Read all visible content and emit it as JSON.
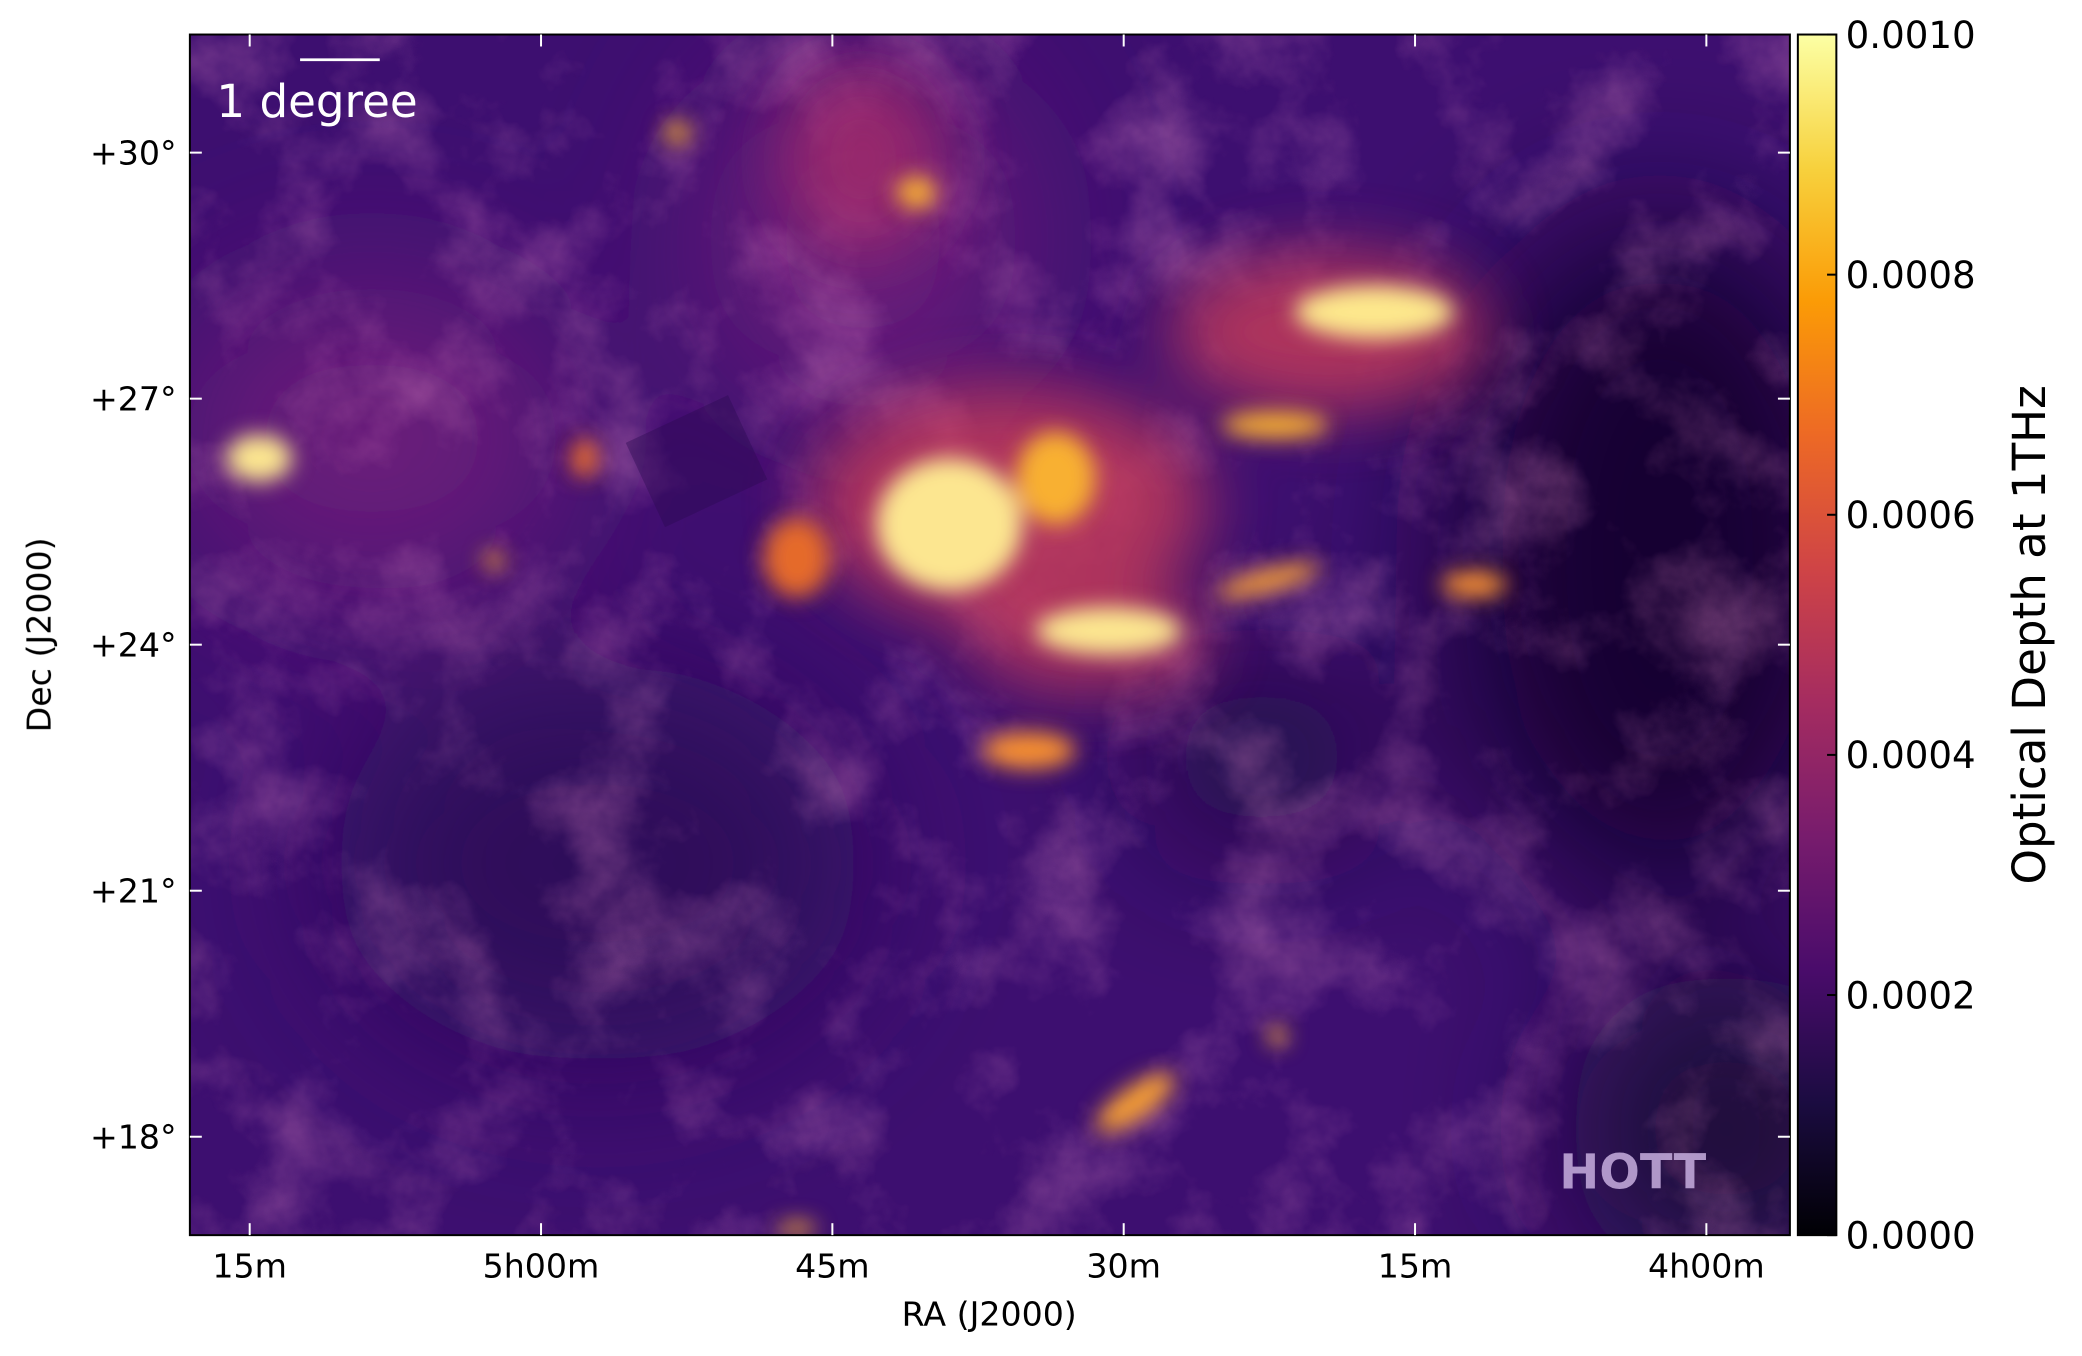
{
  "chart_data": {
    "type": "image-map",
    "xlabel": "RA (J2000)",
    "ylabel": "Dec (J2000)",
    "xlim": [
      318.08,
      235.7
    ],
    "xticks": [
      {
        "value": 315,
        "label": "15m"
      },
      {
        "value": 300,
        "label": "5h00m"
      },
      {
        "value": 285,
        "label": "45m"
      },
      {
        "value": 270,
        "label": "30m"
      },
      {
        "value": 255,
        "label": "15m"
      },
      {
        "value": 240,
        "label": "4h00m"
      }
    ],
    "ylim": [
      16.8,
      31.44
    ],
    "yticks": [
      {
        "value": 30,
        "label": "+30°"
      },
      {
        "value": 27,
        "label": "+27°"
      },
      {
        "value": 24,
        "label": "+24°"
      },
      {
        "value": 21,
        "label": "+21°"
      },
      {
        "value": 18,
        "label": "+18°"
      }
    ],
    "colorbar": {
      "label": "Optical Depth at 1THz",
      "colormap": "inferno",
      "clim": [
        0,
        0.001
      ],
      "ticks": [
        {
          "value": 0,
          "label": "0.0000"
        },
        {
          "value": 0.0002,
          "label": "0.0002"
        },
        {
          "value": 0.0004,
          "label": "0.0004"
        },
        {
          "value": 0.0006,
          "label": "0.0006"
        },
        {
          "value": 0.0008,
          "label": "0.0008"
        },
        {
          "value": 0.001,
          "label": "0.0010"
        }
      ]
    },
    "annotations": [
      "1 degree",
      "HOTT"
    ]
  }
}
